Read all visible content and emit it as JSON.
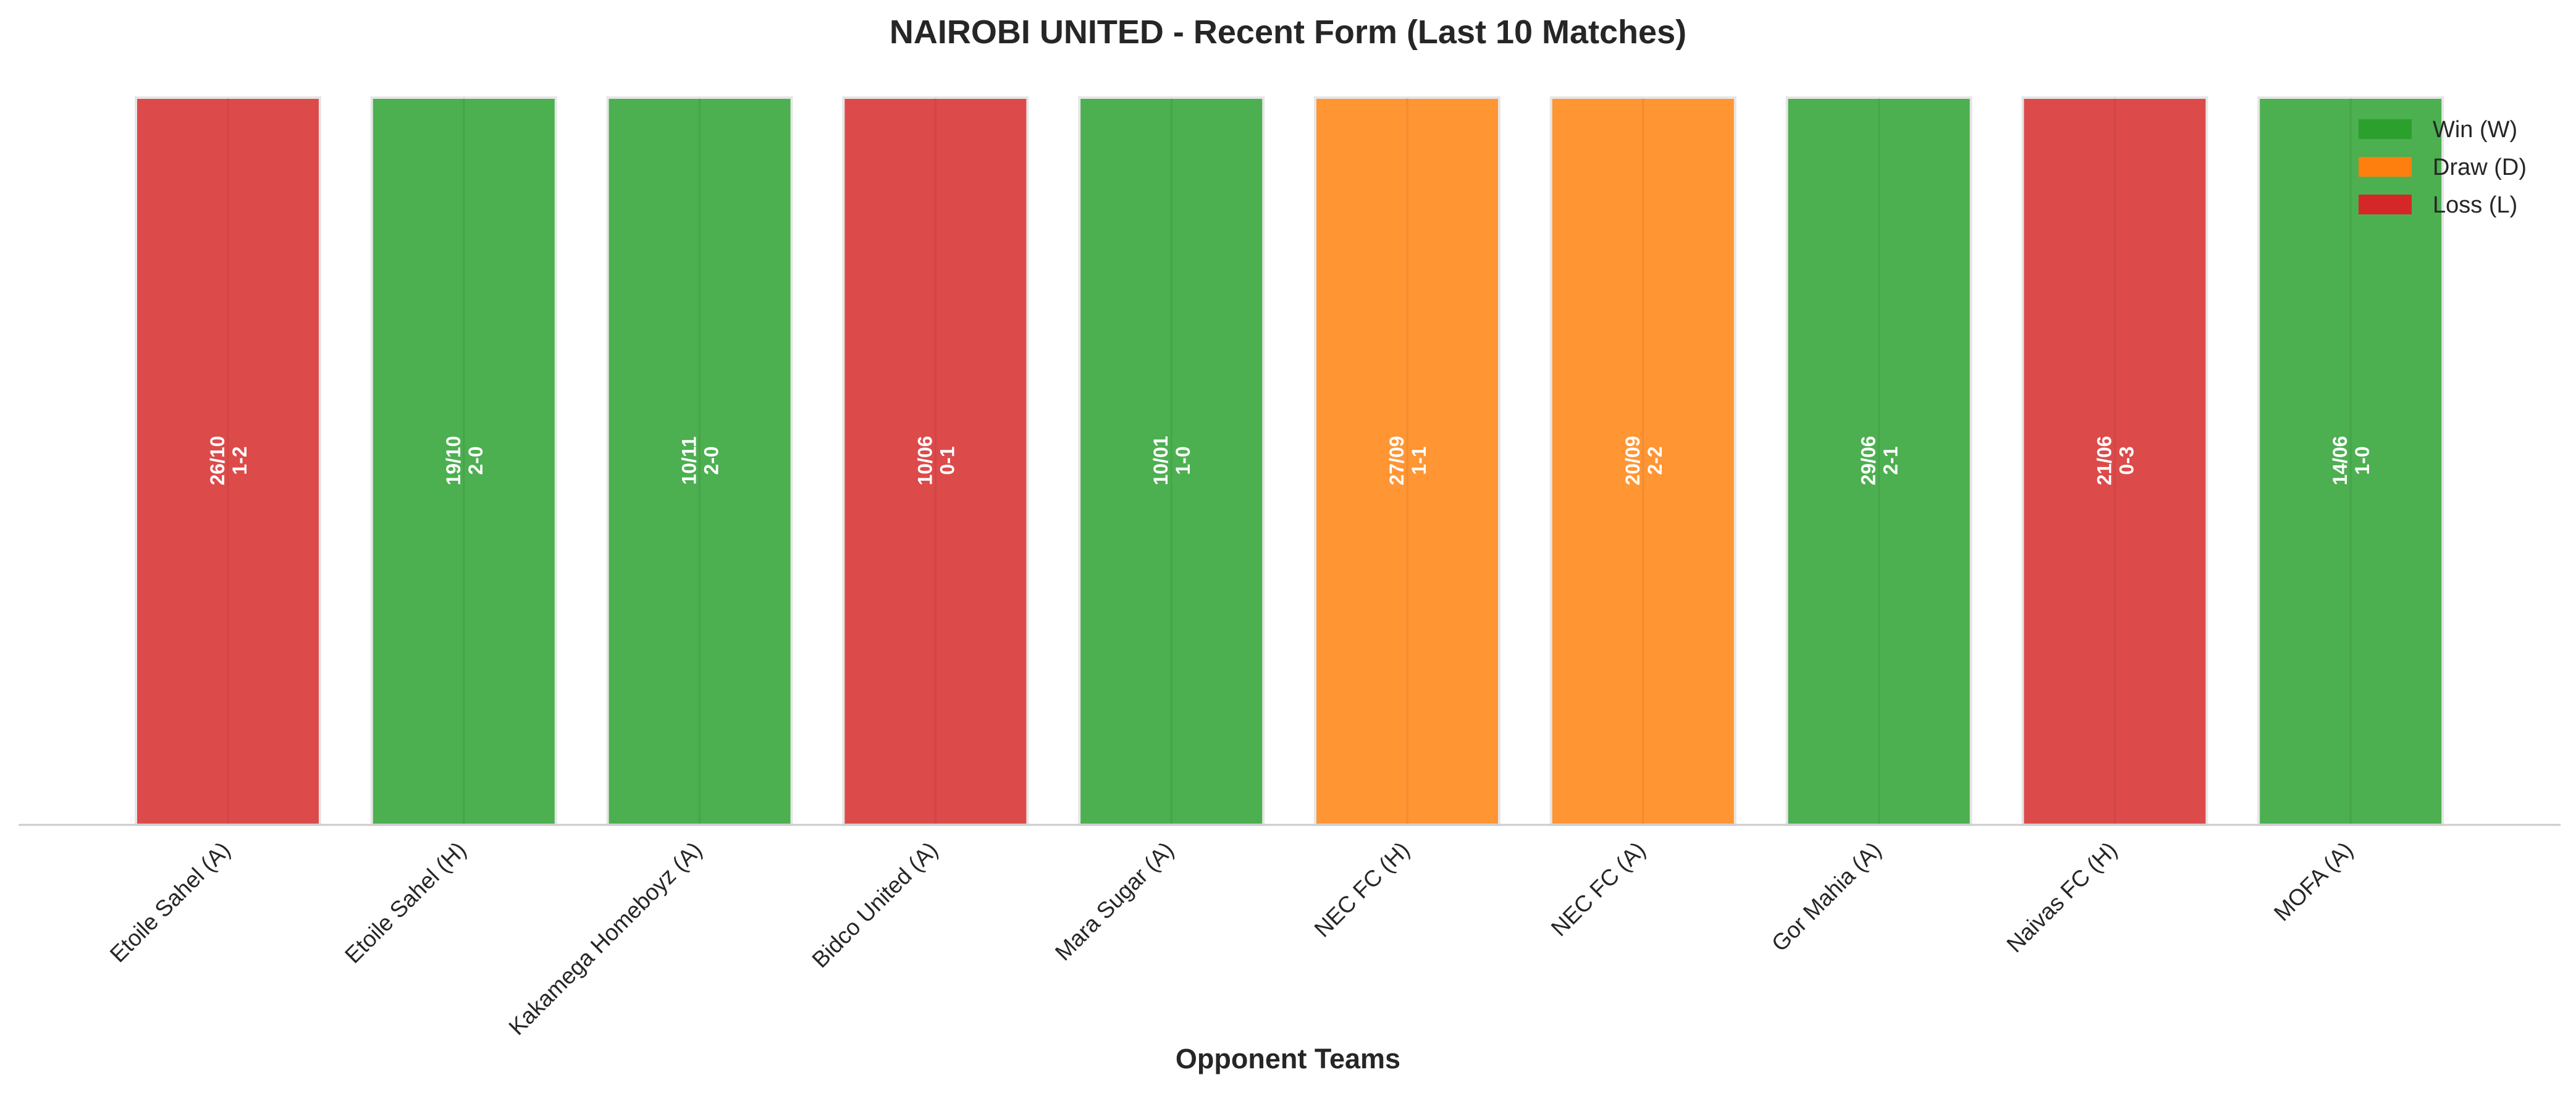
{
  "chart_data": {
    "type": "bar",
    "title": "NAIROBI UNITED - Recent Form (Last 10 Matches)",
    "xlabel": "Opponent Teams",
    "ylabel": "",
    "categories": [
      "Etoile Sahel (A)",
      "Etoile Sahel (H)",
      "Kakamega Homeboyz (A)",
      "Bidco United (A)",
      "Mara Sugar (A)",
      "NEC FC (H)",
      "NEC FC (A)",
      "Gor Mahia (A)",
      "Naivas FC (H)",
      "MOFA (A)"
    ],
    "values": [
      1,
      1,
      1,
      1,
      1,
      1,
      1,
      1,
      1,
      1
    ],
    "results": [
      "L",
      "W",
      "W",
      "L",
      "W",
      "D",
      "D",
      "W",
      "L",
      "W"
    ],
    "dates": [
      "26/10",
      "19/10",
      "10/11",
      "10/06",
      "10/01",
      "27/09",
      "20/09",
      "29/06",
      "21/06",
      "14/06"
    ],
    "scores": [
      "1-2",
      "2-0",
      "2-0",
      "0-1",
      "1-0",
      "1-1",
      "2-2",
      "2-1",
      "0-3",
      "1-0"
    ],
    "ylim": [
      0,
      1
    ],
    "grid": false,
    "legend_position": "top-right",
    "legend": [
      {
        "key": "W",
        "label": "Win (W)"
      },
      {
        "key": "D",
        "label": "Draw (D)"
      },
      {
        "key": "L",
        "label": "Loss (L)"
      }
    ],
    "colors": {
      "W": "#4caf50",
      "D": "#ff9533",
      "L": "#dd4a4a",
      "W_legend": "#2ca02c",
      "D_legend": "#ff7f0e",
      "L_legend": "#d62728"
    }
  }
}
